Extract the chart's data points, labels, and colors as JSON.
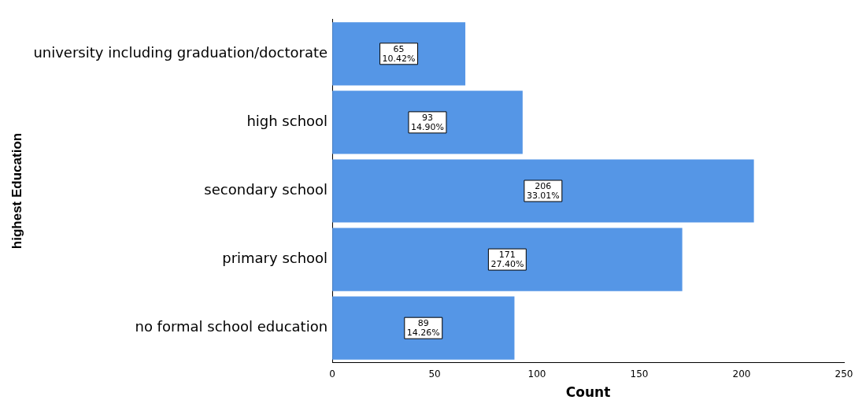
{
  "chart_data": {
    "type": "bar",
    "orientation": "horizontal",
    "xlabel": "Count",
    "ylabel": "highest Education",
    "categories": [
      "university including graduation/doctorate",
      "high school",
      "secondary school",
      "primary school",
      "no formal school education"
    ],
    "values": [
      65,
      93,
      206,
      171,
      89
    ],
    "value_labels": [
      "65\n10.42%",
      "93\n14.90%",
      "206\n33.01%",
      "171\n27.40%",
      "89\n14.26%"
    ],
    "color": "#5596e6",
    "xlim": [
      0,
      250
    ],
    "xticks": [
      0,
      50,
      100,
      150,
      200,
      250
    ],
    "grid": false,
    "legend": false
  }
}
